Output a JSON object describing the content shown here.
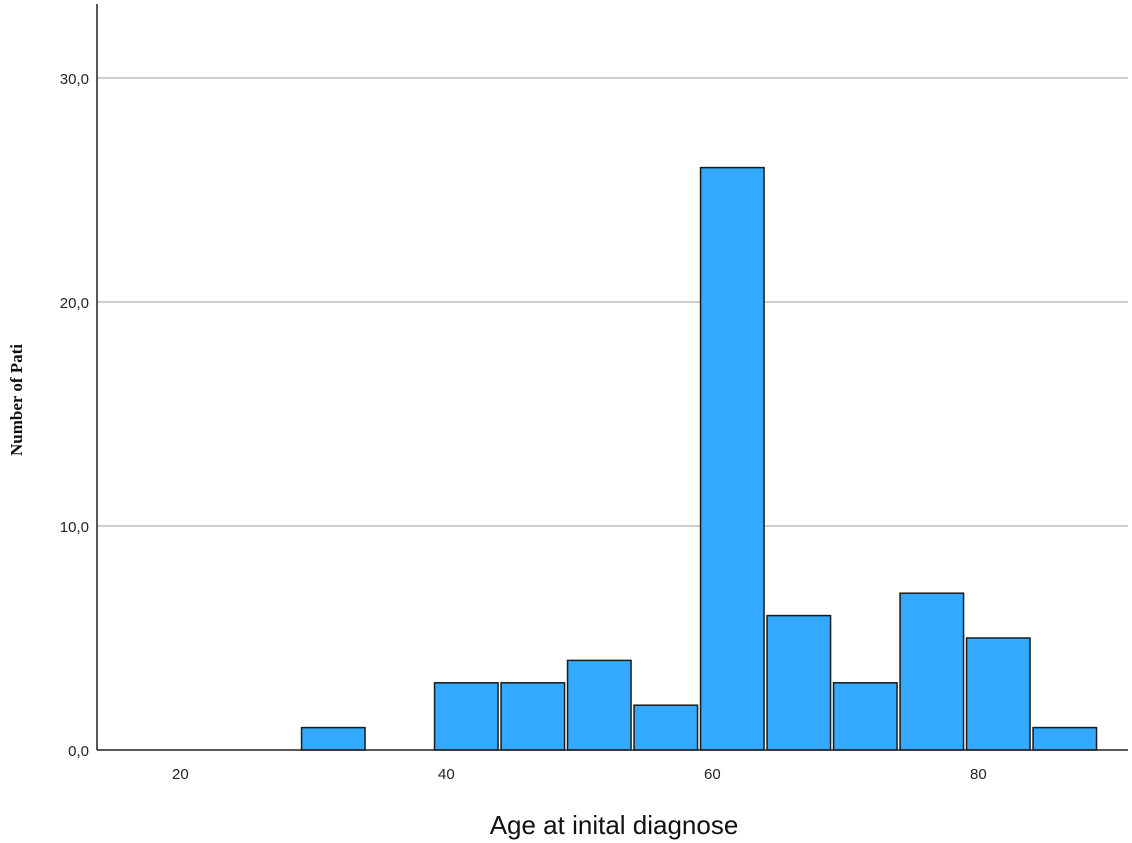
{
  "chart_data": {
    "type": "bar",
    "xlabel": "Age at inital diagnose",
    "ylabel": "Number of Pati",
    "ylim": [
      0,
      33
    ],
    "xlim": [
      15.5,
      91
    ],
    "grid": "horizontal",
    "bar_color": "#33aaff",
    "bar_edge_color": "#1a1a1a",
    "bin_width": 5,
    "bins": [
      {
        "from": 29,
        "to": 34,
        "count": 1
      },
      {
        "from": 39,
        "to": 44,
        "count": 3
      },
      {
        "from": 44,
        "to": 49,
        "count": 3
      },
      {
        "from": 49,
        "to": 54,
        "count": 4
      },
      {
        "from": 54,
        "to": 59,
        "count": 2
      },
      {
        "from": 59,
        "to": 64,
        "count": 26
      },
      {
        "from": 64,
        "to": 69,
        "count": 6
      },
      {
        "from": 69,
        "to": 74,
        "count": 3
      },
      {
        "from": 74,
        "to": 79,
        "count": 7
      },
      {
        "from": 79,
        "to": 84,
        "count": 5
      },
      {
        "from": 84,
        "to": 89,
        "count": 1
      }
    ],
    "x_ticks": [
      {
        "value": 20,
        "label": "20"
      },
      {
        "value": 40,
        "label": "40"
      },
      {
        "value": 60,
        "label": "60"
      },
      {
        "value": 80,
        "label": "80"
      }
    ],
    "y_ticks": [
      {
        "value": 0,
        "label": "0,0"
      },
      {
        "value": 10,
        "label": "10,0"
      },
      {
        "value": 20,
        "label": "20,0"
      },
      {
        "value": 30,
        "label": "30,0"
      }
    ]
  }
}
